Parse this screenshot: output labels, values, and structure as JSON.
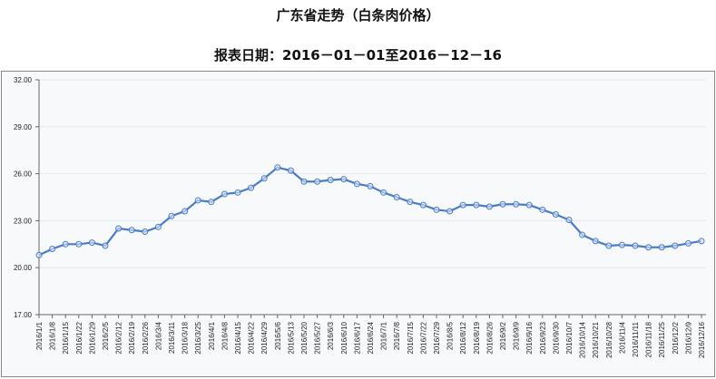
{
  "chart_data": {
    "type": "line",
    "title": "广东省走势（白条肉价格）",
    "subtitle": "报表日期：2016－01－01至2016－12－16",
    "xlabel": "",
    "ylabel": "",
    "ylim": [
      17,
      32
    ],
    "yticks": [
      "17.00",
      "20.00",
      "23.00",
      "26.00",
      "29.00",
      "32.00"
    ],
    "grid": true,
    "line_color": "#4a7cc7",
    "categories": [
      "2016/1/1",
      "2016/1/8",
      "2016/1/15",
      "2016/1/22",
      "2016/1/29",
      "2016/2/5",
      "2016/2/12",
      "2016/2/19",
      "2016/2/26",
      "2016/3/4",
      "2016/3/11",
      "2016/3/18",
      "2016/3/25",
      "2016/4/1",
      "2016/4/8",
      "2016/4/15",
      "2016/4/22",
      "2016/4/29",
      "2016/5/6",
      "2016/5/13",
      "2016/5/20",
      "2016/5/27",
      "2016/6/3",
      "2016/6/10",
      "2016/6/17",
      "2016/6/24",
      "2016/7/1",
      "2016/7/8",
      "2016/7/15",
      "2016/7/22",
      "2016/7/29",
      "2016/8/5",
      "2016/8/12",
      "2016/8/19",
      "2016/8/26",
      "2016/9/2",
      "2016/9/9",
      "2016/9/16",
      "2016/9/23",
      "2016/9/30",
      "2016/10/7",
      "2016/10/14",
      "2016/10/21",
      "2016/10/28",
      "2016/11/4",
      "2016/11/11",
      "2016/11/18",
      "2016/11/25",
      "2016/12/2",
      "2016/12/9",
      "2016/12/16"
    ],
    "values": [
      20.8,
      21.2,
      21.5,
      21.5,
      21.6,
      21.4,
      22.5,
      22.4,
      22.3,
      22.6,
      23.3,
      23.6,
      24.3,
      24.2,
      24.7,
      24.8,
      25.1,
      25.7,
      26.4,
      26.2,
      25.5,
      25.5,
      25.6,
      25.65,
      25.35,
      25.2,
      24.8,
      24.5,
      24.2,
      24.0,
      23.7,
      23.6,
      24.0,
      24.0,
      23.9,
      24.05,
      24.05,
      24.0,
      23.7,
      23.4,
      23.05,
      22.1,
      21.7,
      21.4,
      21.45,
      21.4,
      21.3,
      21.3,
      21.4,
      21.55,
      21.7
    ]
  }
}
